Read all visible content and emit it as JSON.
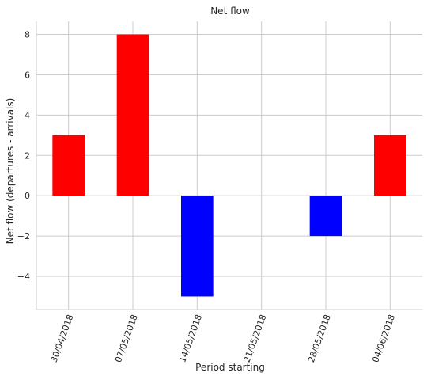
{
  "chart_data": {
    "type": "bar",
    "title": "Net flow",
    "xlabel": "Period starting",
    "ylabel": "Net flow (departures - arrivals)",
    "categories": [
      "30/04/2018",
      "07/05/2018",
      "14/05/2018",
      "21/05/2018",
      "28/05/2018",
      "04/06/2018"
    ],
    "values": [
      3,
      8,
      -5,
      0,
      -2,
      3
    ],
    "ylim": [
      -5.65,
      8.65
    ],
    "yticks": [
      -4,
      -2,
      0,
      2,
      4,
      6,
      8
    ],
    "grid": true,
    "colors": {
      "positive": "#ff0000",
      "negative": "#0000ff"
    }
  }
}
